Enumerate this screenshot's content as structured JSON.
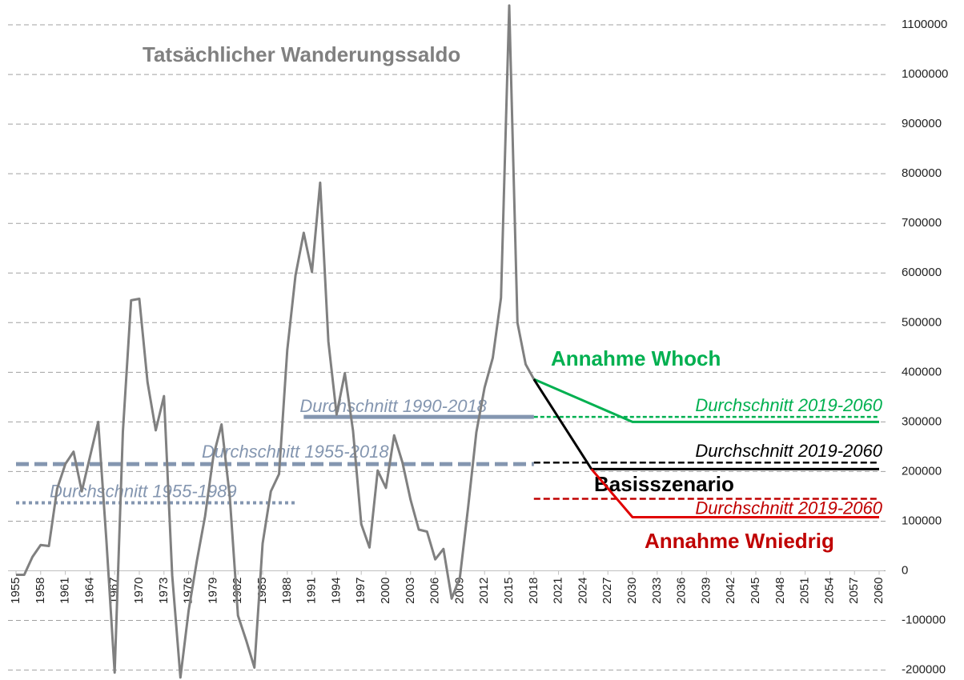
{
  "chart_data": {
    "type": "line",
    "xlim": [
      1955,
      2060
    ],
    "xticks": [
      1955,
      1958,
      1961,
      1964,
      1967,
      1970,
      1973,
      1976,
      1979,
      1982,
      1985,
      1988,
      1991,
      1994,
      1997,
      2000,
      2003,
      2006,
      2009,
      2012,
      2015,
      2018,
      2021,
      2024,
      2027,
      2030,
      2033,
      2036,
      2039,
      2042,
      2045,
      2048,
      2051,
      2054,
      2057,
      2060
    ],
    "ylim": [
      -220000,
      1150000
    ],
    "yticks": [
      -200000,
      -100000,
      0,
      100000,
      200000,
      300000,
      400000,
      500000,
      600000,
      700000,
      800000,
      900000,
      1000000,
      1100000
    ],
    "grid": true,
    "series": [
      {
        "name": "Tatsächlicher Wanderungssaldo",
        "color": "#808080",
        "x": [
          1955,
          1956,
          1957,
          1958,
          1959,
          1960,
          1961,
          1962,
          1963,
          1964,
          1965,
          1966,
          1967,
          1968,
          1969,
          1970,
          1971,
          1972,
          1973,
          1974,
          1975,
          1976,
          1977,
          1978,
          1979,
          1980,
          1981,
          1982,
          1983,
          1984,
          1985,
          1986,
          1987,
          1988,
          1989,
          1990,
          1991,
          1992,
          1993,
          1994,
          1995,
          1996,
          1997,
          1998,
          1999,
          2000,
          2001,
          2002,
          2003,
          2004,
          2005,
          2006,
          2007,
          2008,
          2009,
          2010,
          2011,
          2012,
          2013,
          2014,
          2015,
          2016,
          2017,
          2018
        ],
        "values": [
          -8000,
          -8000,
          28000,
          52000,
          50000,
          165000,
          215000,
          240000,
          160000,
          230000,
          300000,
          60000,
          -205000,
          280000,
          545000,
          548000,
          380000,
          283000,
          352000,
          -9000,
          -215000,
          -80000,
          20000,
          110000,
          230000,
          295000,
          150000,
          -90000,
          -140000,
          -195000,
          55000,
          160000,
          195000,
          445000,
          595000,
          681000,
          602000,
          782000,
          462000,
          315000,
          398000,
          282000,
          94000,
          47000,
          202000,
          167000,
          273000,
          219000,
          143000,
          83000,
          79000,
          23000,
          44000,
          -56000,
          -13000,
          128000,
          279000,
          369000,
          429000,
          550000,
          1139000,
          500000,
          416000,
          386000
        ]
      },
      {
        "name": "Annahme Whoch",
        "color": "#00b050",
        "x": [
          2018,
          2030,
          2060
        ],
        "values": [
          386000,
          300000,
          300000
        ]
      },
      {
        "name": "Basisszenario",
        "color": "#000000",
        "x": [
          2018,
          2025,
          2060
        ],
        "values": [
          386000,
          205000,
          205000
        ]
      },
      {
        "name": "Annahme Wniedrig",
        "color": "#e00000",
        "x": [
          2025,
          2030,
          2060
        ],
        "values": [
          205000,
          108000,
          108000
        ]
      }
    ],
    "reference_lines": [
      {
        "name": "Durchschnitt 1990-2018",
        "color": "#8496b0",
        "style": "solid",
        "x": [
          1990,
          2018
        ],
        "value": 310000
      },
      {
        "name": "Durchschnitt 1955-2018",
        "color": "#8496b0",
        "style": "dashed",
        "x": [
          1955,
          2018
        ],
        "value": 215000
      },
      {
        "name": "Durchschnitt 1955-1989",
        "color": "#8496b0",
        "style": "dotted",
        "x": [
          1955,
          1989
        ],
        "value": 137000
      },
      {
        "name": "Durchschnitt 2019-2060",
        "color": "#00b050",
        "style": "dotted",
        "x": [
          2018,
          2060
        ],
        "value": 310000
      },
      {
        "name": "Durchschnitt 2019-2060",
        "color": "#000000",
        "style": "dashed",
        "x": [
          2018,
          2060
        ],
        "value": 218000
      },
      {
        "name": "Durchschnitt 2019-2060",
        "color": "#c00000",
        "style": "dashed",
        "x": [
          2018,
          2060
        ],
        "value": 145000
      }
    ]
  }
}
